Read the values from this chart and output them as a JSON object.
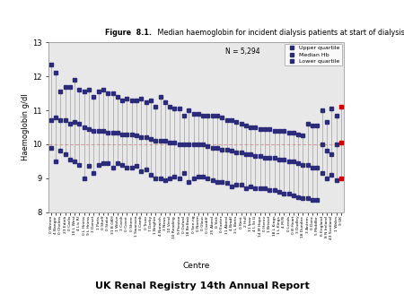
{
  "title_bold": "Figure  8.1.",
  "title_normal": " Median haemoglobin for incident dialysis patients at start of dialysis treatment in 2010",
  "ylabel": "Haemoglobin g/dl",
  "xlabel": "Centre",
  "footer": "UK Renal Registry 14th Annual Report",
  "n_label": "N = 5,294",
  "ylim": [
    8,
    13
  ],
  "yticks": [
    8,
    9,
    10,
    11,
    12,
    13
  ],
  "hline": 10.0,
  "hline_color": "#d9a0a0",
  "bg_color": "#e8e8e8",
  "centres": [
    "0 Wrexm",
    "4 Bangor",
    "0 Chelms",
    "23 Edinb",
    "0 Carlis",
    "10 L West",
    "4 Liv RI",
    "0 L Hness",
    "9 L Hness",
    "3 Dorset",
    "1 Ports",
    "0 Sheff",
    "0 Stoke",
    "31 B GKH",
    "1 Wolve",
    "3 Carsh",
    "0 Covnt",
    "0 Shere",
    "1 Swansea",
    "3 Camb",
    "0 Truro",
    "7 Derby",
    "1 Brightn",
    "4 Norwich",
    "3 Newc",
    "10 Vend",
    "10 Reading",
    "9 Preston",
    "0 Oxford",
    "18 Belfast",
    "0 See-ng",
    "0 Nortm",
    "0 Glouc",
    "0 Cardiff",
    "25 Aberd",
    "0 York",
    "0 Exeter",
    "11 Aberd",
    "4 Bradf",
    "3 L Barts",
    "0 Kent",
    "2 Hull",
    "11 Ipsw",
    "4 L St.G",
    "14 M Hope",
    "0 Henrv",
    "1 Bristol",
    "18 L Kings",
    "1 L Kings",
    "4 M RI",
    "0 Leeds",
    "0 B Heart",
    "3 Dudley",
    "18 Dundee",
    "3 Antrim",
    "0 Donc",
    "5 Middlbr",
    "6 England",
    "8 N Ireland",
    "43 Scotland",
    "1 Wales",
    "9 UK"
  ],
  "median": [
    10.7,
    10.8,
    10.7,
    10.7,
    10.6,
    10.65,
    10.6,
    10.5,
    10.45,
    10.4,
    10.4,
    10.4,
    10.35,
    10.35,
    10.35,
    10.3,
    10.3,
    10.3,
    10.25,
    10.2,
    10.2,
    10.15,
    10.1,
    10.1,
    10.1,
    10.05,
    10.05,
    10.0,
    10.0,
    10.0,
    10.0,
    10.0,
    10.0,
    9.95,
    9.9,
    9.9,
    9.85,
    9.85,
    9.8,
    9.75,
    9.75,
    9.7,
    9.7,
    9.65,
    9.65,
    9.6,
    9.6,
    9.6,
    9.55,
    9.55,
    9.5,
    9.5,
    9.45,
    9.4,
    9.4,
    9.3,
    9.3,
    10.0,
    9.8,
    9.7,
    10.0,
    10.05
  ],
  "upper": [
    12.35,
    12.1,
    11.55,
    11.7,
    11.7,
    11.9,
    11.6,
    11.55,
    11.6,
    11.4,
    11.55,
    11.6,
    11.5,
    11.5,
    11.4,
    11.3,
    11.35,
    11.3,
    11.3,
    11.35,
    11.25,
    11.3,
    11.1,
    11.4,
    11.25,
    11.1,
    11.05,
    11.05,
    10.85,
    11.0,
    10.9,
    10.9,
    10.85,
    10.85,
    10.85,
    10.85,
    10.8,
    10.7,
    10.7,
    10.65,
    10.6,
    10.55,
    10.5,
    10.5,
    10.45,
    10.45,
    10.45,
    10.4,
    10.4,
    10.4,
    10.35,
    10.35,
    10.3,
    10.25,
    10.6,
    10.55,
    10.55,
    11.0,
    10.65,
    11.05,
    10.85,
    11.1
  ],
  "lower": [
    9.9,
    9.5,
    9.8,
    9.7,
    9.55,
    9.5,
    9.4,
    9.0,
    9.35,
    9.15,
    9.4,
    9.45,
    9.45,
    9.3,
    9.45,
    9.4,
    9.3,
    9.3,
    9.35,
    9.2,
    9.25,
    9.1,
    9.0,
    9.0,
    8.95,
    9.0,
    9.05,
    9.0,
    9.15,
    8.9,
    9.0,
    9.05,
    9.05,
    9.0,
    8.95,
    8.9,
    8.9,
    8.85,
    8.75,
    8.8,
    8.8,
    8.7,
    8.75,
    8.7,
    8.7,
    8.7,
    8.65,
    8.65,
    8.6,
    8.55,
    8.55,
    8.5,
    8.45,
    8.4,
    8.4,
    8.35,
    8.35,
    9.15,
    9.0,
    9.1,
    8.95,
    9.0
  ],
  "last_color": "#cc0000",
  "marker_color": "#2b2b7a",
  "line_color": "#a0a0a0",
  "marker_size": 2.5
}
